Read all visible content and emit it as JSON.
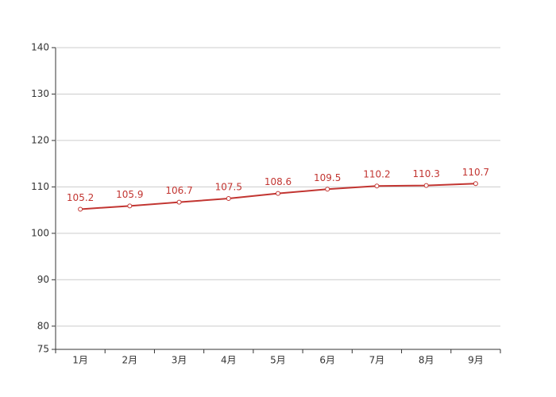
{
  "chart_data": {
    "type": "line",
    "categories": [
      "1月",
      "2月",
      "3月",
      "4月",
      "5月",
      "6月",
      "7月",
      "8月",
      "9月"
    ],
    "series": [
      {
        "color": "#c23531",
        "values": [
          105.2,
          105.9,
          106.7,
          107.5,
          108.6,
          109.5,
          110.2,
          110.3,
          110.7
        ]
      }
    ],
    "ylim": [
      75,
      140
    ],
    "yticks": [
      75,
      80,
      90,
      100,
      110,
      120,
      130,
      140
    ],
    "grid": true
  }
}
